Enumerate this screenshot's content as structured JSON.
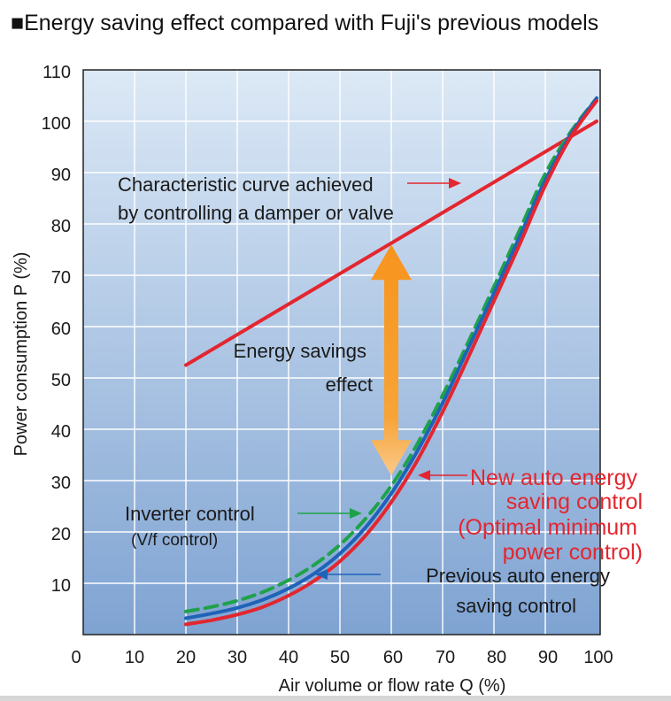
{
  "chart_data": {
    "type": "line",
    "title": "■Energy saving effect compared with Fuji's previous models",
    "xlabel": "Air volume or flow rate Q (%)",
    "ylabel": "Power consumption P (%)",
    "xlim": [
      0,
      100
    ],
    "ylim": [
      0,
      110
    ],
    "x_ticks": [
      "0",
      "10",
      "20",
      "30",
      "40",
      "50",
      "60",
      "70",
      "80",
      "90",
      "100"
    ],
    "y_ticks": [
      "10",
      "20",
      "30",
      "40",
      "50",
      "60",
      "70",
      "80",
      "90",
      "100",
      "110"
    ],
    "grid": true,
    "series": [
      {
        "name": "Characteristic curve achieved by controlling a damper or valve",
        "color": "#e3262f",
        "style": "solid",
        "x": [
          20,
          100
        ],
        "y": [
          52.5,
          100
        ]
      },
      {
        "name": "Inverter control (V/f control)",
        "color": "#1fa24a",
        "style": "dashed",
        "x": [
          20,
          25,
          30,
          35,
          40,
          45,
          50,
          55,
          60,
          65,
          70,
          75,
          80,
          85,
          90,
          95,
          100
        ],
        "y": [
          4.5,
          5.4,
          6.6,
          8.3,
          10.6,
          13.6,
          17.5,
          22.6,
          29.0,
          37.0,
          46.6,
          57.0,
          67.8,
          78.8,
          89.8,
          98.0,
          104.5
        ]
      },
      {
        "name": "Previous auto energy saving control",
        "color": "#1f63b8",
        "style": "solid",
        "x": [
          20,
          25,
          30,
          35,
          40,
          45,
          50,
          55,
          60,
          65,
          70,
          75,
          80,
          85,
          90,
          95,
          100
        ],
        "y": [
          3.2,
          4.1,
          5.2,
          6.8,
          9.0,
          11.9,
          15.8,
          20.9,
          27.5,
          35.6,
          45.1,
          55.8,
          66.5,
          77.5,
          88.5,
          97.5,
          104.5
        ]
      },
      {
        "name": "New auto energy saving control (Optimal minimum power control)",
        "color": "#e3262f",
        "style": "solid",
        "x": [
          20,
          25,
          30,
          35,
          40,
          45,
          50,
          55,
          60,
          65,
          70,
          75,
          80,
          85,
          90,
          95,
          100
        ],
        "y": [
          2.0,
          2.8,
          3.9,
          5.4,
          7.6,
          10.5,
          14.3,
          19.3,
          25.8,
          33.8,
          43.4,
          54.0,
          65.0,
          76.0,
          87.5,
          97.0,
          104.0
        ]
      }
    ],
    "annotations": {
      "damper_line1": "Characteristic curve achieved",
      "damper_line2": "by controlling a damper or valve",
      "savings_line1": "Energy savings",
      "savings_line2": "effect",
      "inverter_line1": "Inverter control",
      "inverter_line2": "(V/f control)",
      "new_line1": "New auto energy",
      "new_line2": "saving control",
      "new_line3": "(Optimal minimum",
      "new_line4": "power control)",
      "prev_line1": "Previous auto energy",
      "prev_line2": "saving control"
    },
    "savings_arrow": {
      "x": 60,
      "y_from": 31,
      "y_to": 76,
      "color": "#f7941d"
    },
    "colors": {
      "plot_bg_top": "#dce9f6",
      "plot_bg_bottom": "#7fa3d2",
      "grid": "#ffffff",
      "arrow_red": "#e3262f",
      "arrow_green": "#1fa24a",
      "arrow_blue": "#1f63b8"
    }
  }
}
